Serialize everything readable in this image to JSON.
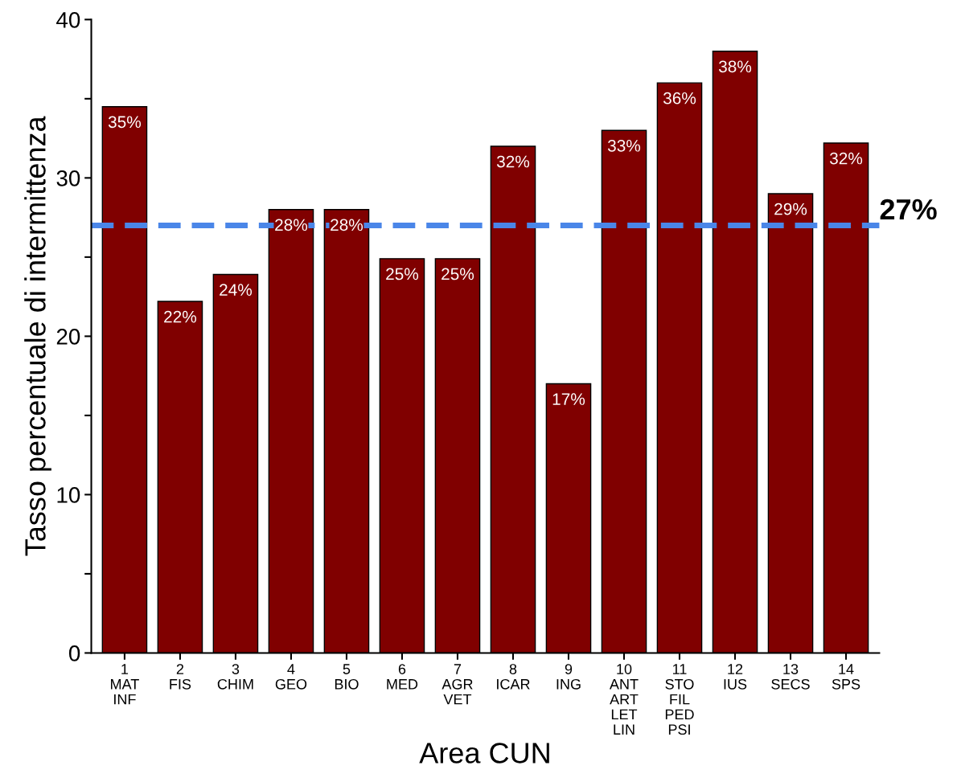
{
  "chart_data": {
    "type": "bar",
    "xlabel": "Area CUN",
    "ylabel": "Tasso percentuale di intermittenza",
    "categories": [
      "1\nMAT\nINF",
      "2\nFIS",
      "3\nCHIM",
      "4\nGEO",
      "5\nBIO",
      "6\nMED",
      "7\nAGR\nVET",
      "8\nICAR",
      "9\nING",
      "10\nANT\nART\nLET\nLIN",
      "11\nSTO\nFIL\nPED\nPSI",
      "12\nIUS",
      "13\nSECS",
      "14\nSPS"
    ],
    "values": [
      34.5,
      22.2,
      23.9,
      28.0,
      28.0,
      24.9,
      24.9,
      32.0,
      17.0,
      33.0,
      36.0,
      38.0,
      29.0,
      32.2
    ],
    "value_labels": [
      "35%",
      "22%",
      "24%",
      "28%",
      "28%",
      "25%",
      "25%",
      "32%",
      "17%",
      "33%",
      "36%",
      "38%",
      "29%",
      "32%"
    ],
    "color": "#800000",
    "ylim": [
      0,
      40
    ],
    "yticks": [
      0,
      {
        "value": 5,
        "label": null
      },
      10,
      {
        "value": 15,
        "label": null
      },
      20,
      {
        "value": 25,
        "label": null
      },
      30,
      {
        "value": 35,
        "label": null
      },
      40
    ],
    "ref_lines": [
      {
        "axis": "y",
        "value": 27,
        "label": "27%",
        "color": "#4a86e8",
        "line_style": "dashed"
      }
    ],
    "grid": false,
    "legend": false
  }
}
